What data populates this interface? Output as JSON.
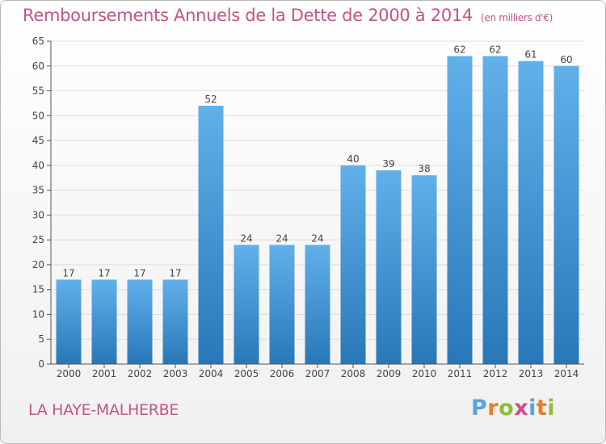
{
  "title": "Remboursements Annuels de la Dette de 2000 à 2014",
  "unit_label": "(en milliers d'€)",
  "commune": "LA HAYE-MALHERBE",
  "logo": {
    "letters": [
      "P",
      "r",
      "o",
      "x",
      "i",
      "t",
      "i"
    ]
  },
  "colors": {
    "title": "#c0548a",
    "bar_top": "#62b0ea",
    "bar_bottom": "#2878b8",
    "axis": "#555555",
    "grid": "#dddddd"
  },
  "chart_data": {
    "type": "bar",
    "title": "Remboursements Annuels de la Dette de 2000 à 2014",
    "categories": [
      "2000",
      "2001",
      "2002",
      "2003",
      "2004",
      "2005",
      "2006",
      "2007",
      "2008",
      "2009",
      "2010",
      "2011",
      "2012",
      "2013",
      "2014"
    ],
    "values": [
      17,
      17,
      17,
      17,
      52,
      24,
      24,
      24,
      40,
      39,
      38,
      62,
      62,
      61,
      60
    ],
    "ylim": [
      0,
      65
    ],
    "yticks": [
      0,
      5,
      10,
      15,
      20,
      25,
      30,
      35,
      40,
      45,
      50,
      55,
      60,
      65
    ],
    "xlabel": "",
    "ylabel": "",
    "grid": true,
    "data_labels": true
  }
}
